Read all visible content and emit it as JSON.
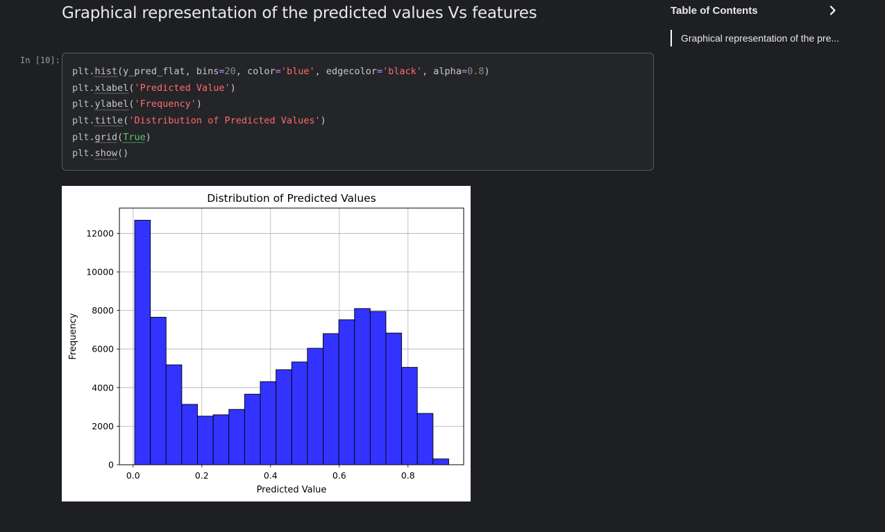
{
  "heading": "Graphical representation of the predicted values Vs features",
  "toc": {
    "title": "Table of Contents",
    "items": [
      "Graphical representation of the pre..."
    ]
  },
  "cell": {
    "prompt": "In [10]:",
    "lines": [
      [
        [
          "obj",
          "plt"
        ],
        [
          "p",
          "."
        ],
        [
          "fn",
          "hist"
        ],
        [
          "p",
          "(y_pred_flat, bins"
        ],
        [
          "op",
          "="
        ],
        [
          "num",
          "20"
        ],
        [
          "p",
          ", color"
        ],
        [
          "op",
          "="
        ],
        [
          "str",
          "'blue'"
        ],
        [
          "p",
          ", edgecolor"
        ],
        [
          "op",
          "="
        ],
        [
          "str",
          "'black'"
        ],
        [
          "p",
          ", alpha"
        ],
        [
          "op",
          "="
        ],
        [
          "num",
          "0.8"
        ],
        [
          "p",
          ")"
        ]
      ],
      [
        [
          "obj",
          "plt"
        ],
        [
          "p",
          "."
        ],
        [
          "fn",
          "xlabel"
        ],
        [
          "p",
          "("
        ],
        [
          "str",
          "'Predicted Value'"
        ],
        [
          "p",
          ")"
        ]
      ],
      [
        [
          "obj",
          "plt"
        ],
        [
          "p",
          "."
        ],
        [
          "fn",
          "ylabel"
        ],
        [
          "p",
          "("
        ],
        [
          "str",
          "'Frequency'"
        ],
        [
          "p",
          ")"
        ]
      ],
      [
        [
          "obj",
          "plt"
        ],
        [
          "p",
          "."
        ],
        [
          "fn",
          "title"
        ],
        [
          "p",
          "("
        ],
        [
          "str",
          "'Distribution of Predicted Values'"
        ],
        [
          "p",
          ")"
        ]
      ],
      [
        [
          "obj",
          "plt"
        ],
        [
          "p",
          "."
        ],
        [
          "fn",
          "grid"
        ],
        [
          "p",
          "("
        ],
        [
          "kw",
          "True"
        ],
        [
          "p",
          ")"
        ]
      ],
      [
        [
          "obj",
          "plt"
        ],
        [
          "p",
          "."
        ],
        [
          "fn",
          "show"
        ],
        [
          "p",
          "()"
        ]
      ]
    ]
  },
  "colors": {
    "bar_fill": "#3333ff",
    "bar_edge": "#000000",
    "grid": "#b0b0b0"
  },
  "chart_data": {
    "type": "bar",
    "title": "Distribution of Predicted Values",
    "xlabel": "Predicted Value",
    "ylabel": "Frequency",
    "bin_edges": [
      0.0045,
      0.0502,
      0.0959,
      0.1416,
      0.1873,
      0.233,
      0.2787,
      0.3244,
      0.3701,
      0.4158,
      0.4615,
      0.5072,
      0.5529,
      0.5986,
      0.6443,
      0.69,
      0.7357,
      0.7814,
      0.8271,
      0.8728,
      0.9185
    ],
    "values": [
      12680,
      7650,
      5180,
      3130,
      2520,
      2590,
      2870,
      3660,
      4310,
      4930,
      5330,
      6040,
      6800,
      7520,
      8100,
      7950,
      6830,
      5050,
      2660,
      300
    ],
    "xlim": [
      -0.04,
      0.962
    ],
    "ylim": [
      0,
      13310
    ],
    "xticks": [
      0.0,
      0.2,
      0.4,
      0.6,
      0.8
    ],
    "xtick_labels": [
      "0.0",
      "0.2",
      "0.4",
      "0.6",
      "0.8"
    ],
    "yticks": [
      0,
      2000,
      4000,
      6000,
      8000,
      10000,
      12000
    ],
    "ytick_labels": [
      "0",
      "2000",
      "4000",
      "6000",
      "8000",
      "10000",
      "12000"
    ],
    "grid": true
  }
}
